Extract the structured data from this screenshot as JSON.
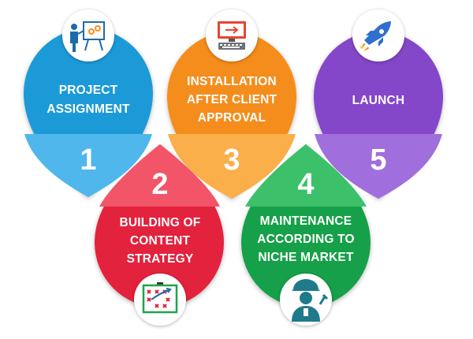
{
  "steps": [
    {
      "number": "1",
      "label_lines": [
        "PROJECT",
        "ASSIGNMENT"
      ],
      "color": "#1e9cdb",
      "icon": "presentation-icon"
    },
    {
      "number": "2",
      "label_lines": [
        "BUILDING OF",
        "CONTENT",
        "STRATEGY"
      ],
      "color": "#e53348",
      "icon": "strategy-board-icon"
    },
    {
      "number": "3",
      "label_lines": [
        "INSTALLATION",
        "AFTER CLIENT",
        "APPROVAL"
      ],
      "color": "#f6911e",
      "icon": "computer-icon"
    },
    {
      "number": "4",
      "label_lines": [
        "MAINTENANCE",
        "ACCORDING TO",
        "NICHE MARKET"
      ],
      "color": "#1ea44a",
      "icon": "worker-icon"
    },
    {
      "number": "5",
      "label_lines": [
        "LAUNCH"
      ],
      "color": "#8a4fcd",
      "icon": "rocket-icon"
    }
  ]
}
